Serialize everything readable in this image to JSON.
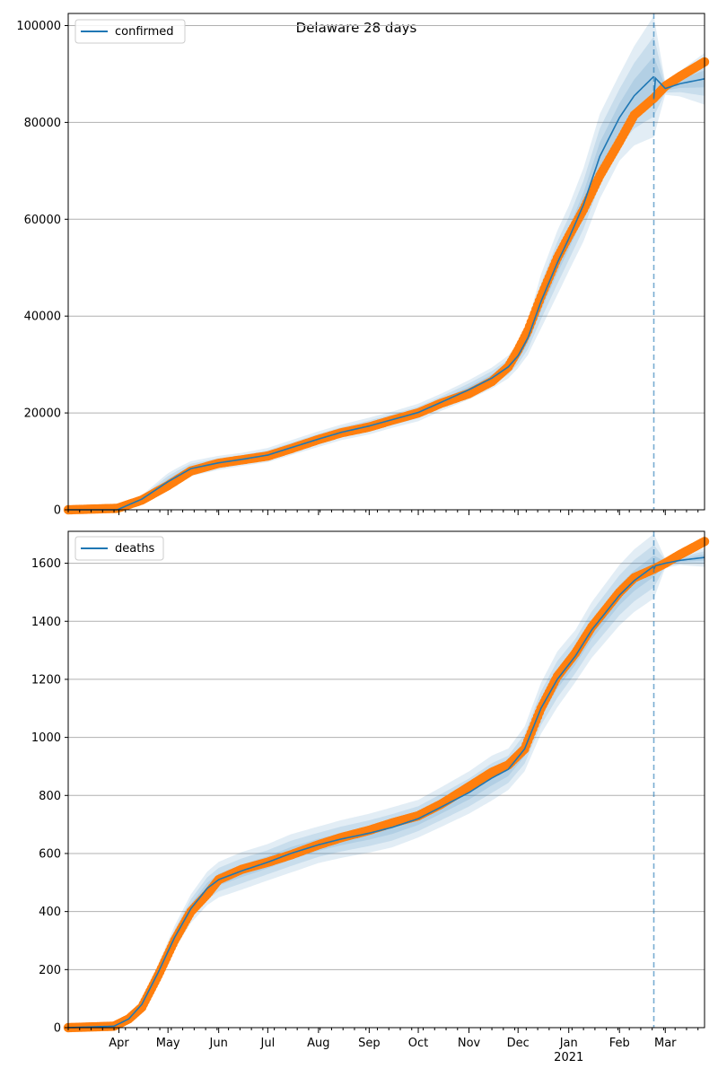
{
  "title": "Delaware 28 days",
  "colors": {
    "model": "#1f77b4",
    "observed": "#ff7f0e",
    "grid": "#b0b0b0",
    "forecast_line": "#1f77b4"
  },
  "chart_data": [
    {
      "type": "line",
      "legend": "confirmed",
      "legend_position": "upper-left",
      "grid": true,
      "xlim": [
        "2020-03-01",
        "2021-03-25"
      ],
      "ylim": [
        0,
        102500
      ],
      "yticks": [
        0,
        20000,
        40000,
        60000,
        80000,
        100000
      ],
      "xticks": [],
      "forecast_start": "2021-02-22",
      "model": {
        "name": "confirmed",
        "x": [
          "2020-03-01",
          "2020-03-31",
          "2020-04-15",
          "2020-05-01",
          "2020-05-15",
          "2020-06-01",
          "2020-06-15",
          "2020-07-01",
          "2020-07-15",
          "2020-08-01",
          "2020-08-15",
          "2020-09-01",
          "2020-09-15",
          "2020-10-01",
          "2020-10-15",
          "2020-11-01",
          "2020-11-15",
          "2020-11-25",
          "2020-12-01",
          "2020-12-07",
          "2020-12-15",
          "2020-12-25",
          "2021-01-01",
          "2021-01-10",
          "2021-01-20",
          "2021-02-01",
          "2021-02-10",
          "2021-02-22",
          "2021-03-01",
          "2021-03-10",
          "2021-03-25"
        ],
        "y": [
          0,
          0,
          2200,
          5800,
          8500,
          9700,
          10400,
          11300,
          12800,
          14600,
          16000,
          17300,
          18600,
          20100,
          22200,
          24800,
          27200,
          29500,
          31800,
          35500,
          43000,
          51000,
          56000,
          63000,
          73000,
          81000,
          85500,
          89500,
          87000,
          88000,
          89000
        ],
        "band_rel": [
          0.3,
          0.25,
          0.35,
          0.3,
          0.18,
          0.15,
          0.13,
          0.13,
          0.12,
          0.11,
          0.1,
          0.1,
          0.09,
          0.09,
          0.08,
          0.08,
          0.08,
          0.08,
          0.08,
          0.1,
          0.13,
          0.13,
          0.12,
          0.12,
          0.12,
          0.11,
          0.12,
          0.14,
          0.015,
          0.03,
          0.06
        ]
      },
      "observed": {
        "x": [
          "2020-03-01",
          "2020-03-31",
          "2020-04-15",
          "2020-05-01",
          "2020-05-15",
          "2020-06-01",
          "2020-06-15",
          "2020-07-01",
          "2020-07-15",
          "2020-08-01",
          "2020-08-15",
          "2020-09-01",
          "2020-09-15",
          "2020-10-01",
          "2020-10-15",
          "2020-11-01",
          "2020-11-15",
          "2020-11-25",
          "2020-12-01",
          "2020-12-07",
          "2020-12-15",
          "2020-12-25",
          "2021-01-01",
          "2021-01-10",
          "2021-01-20",
          "2021-02-01",
          "2021-02-10",
          "2021-02-22",
          "2021-03-01",
          "2021-03-10",
          "2021-03-25"
        ],
        "y": [
          0,
          300,
          2000,
          5000,
          8000,
          9600,
          10300,
          11100,
          12600,
          14500,
          15900,
          17100,
          18500,
          20000,
          22000,
          24000,
          26500,
          29500,
          33000,
          37000,
          44000,
          52000,
          56500,
          62000,
          69000,
          76000,
          81500,
          85000,
          87500,
          89500,
          92500
        ]
      }
    },
    {
      "type": "line",
      "legend": "deaths",
      "legend_position": "upper-left",
      "grid": true,
      "xlim": [
        "2020-03-01",
        "2021-03-25"
      ],
      "ylim": [
        0,
        1710
      ],
      "yticks": [
        0,
        200,
        400,
        600,
        800,
        1000,
        1200,
        1400,
        1600
      ],
      "xticks": [
        "Apr",
        "May",
        "Jun",
        "Jul",
        "Aug",
        "Sep",
        "Oct",
        "Nov",
        "Dec",
        "Jan",
        "Feb",
        "Mar"
      ],
      "xtick_year": "2021",
      "forecast_start": "2021-02-22",
      "model": {
        "name": "deaths",
        "x": [
          "2020-03-01",
          "2020-03-29",
          "2020-04-07",
          "2020-04-15",
          "2020-04-25",
          "2020-05-05",
          "2020-05-15",
          "2020-05-25",
          "2020-06-01",
          "2020-06-15",
          "2020-07-01",
          "2020-07-15",
          "2020-08-01",
          "2020-08-15",
          "2020-09-01",
          "2020-09-15",
          "2020-10-01",
          "2020-10-15",
          "2020-11-01",
          "2020-11-15",
          "2020-11-25",
          "2020-12-05",
          "2020-12-15",
          "2020-12-25",
          "2021-01-05",
          "2021-01-15",
          "2021-02-01",
          "2021-02-10",
          "2021-02-22",
          "2021-03-01",
          "2021-03-10",
          "2021-03-25"
        ],
        "y": [
          0,
          5,
          30,
          80,
          190,
          310,
          410,
          480,
          510,
          540,
          570,
          600,
          630,
          650,
          670,
          690,
          720,
          760,
          810,
          860,
          890,
          960,
          1100,
          1200,
          1280,
          1370,
          1490,
          1540,
          1590,
          1600,
          1610,
          1620
        ],
        "band_rel": [
          0.3,
          0.3,
          0.25,
          0.2,
          0.15,
          0.13,
          0.12,
          0.12,
          0.12,
          0.12,
          0.11,
          0.11,
          0.1,
          0.1,
          0.1,
          0.1,
          0.09,
          0.09,
          0.09,
          0.09,
          0.08,
          0.08,
          0.08,
          0.08,
          0.07,
          0.07,
          0.07,
          0.07,
          0.07,
          0.01,
          0.01,
          0.02
        ]
      },
      "observed": {
        "x": [
          "2020-03-01",
          "2020-03-29",
          "2020-04-07",
          "2020-04-15",
          "2020-04-25",
          "2020-05-05",
          "2020-05-15",
          "2020-05-25",
          "2020-06-01",
          "2020-06-15",
          "2020-07-01",
          "2020-07-15",
          "2020-08-01",
          "2020-08-15",
          "2020-09-01",
          "2020-09-15",
          "2020-10-01",
          "2020-10-15",
          "2020-11-01",
          "2020-11-15",
          "2020-11-25",
          "2020-12-05",
          "2020-12-15",
          "2020-12-25",
          "2021-01-05",
          "2021-01-15",
          "2021-02-01",
          "2021-02-10",
          "2021-02-22",
          "2021-03-01",
          "2021-03-10",
          "2021-03-25"
        ],
        "y": [
          0,
          5,
          30,
          70,
          180,
          300,
          400,
          460,
          510,
          545,
          570,
          595,
          630,
          655,
          680,
          705,
          730,
          770,
          830,
          880,
          905,
          960,
          1100,
          1210,
          1290,
          1380,
          1500,
          1550,
          1580,
          1600,
          1630,
          1675
        ]
      }
    }
  ]
}
